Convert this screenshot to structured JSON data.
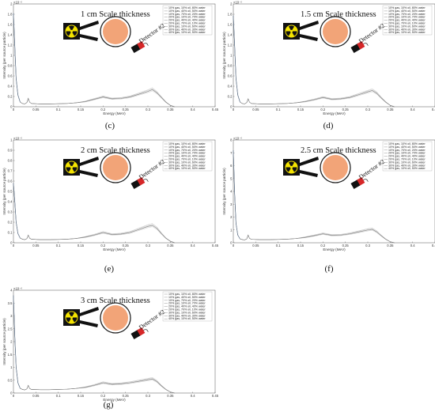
{
  "colors": {
    "axis": "#555555",
    "curve": "#7f7f7f",
    "curve_peak": "#4a7fc1",
    "detector_red": "#d62728",
    "source_yellow": "#f5e400",
    "sphere_fill": "#f2a478",
    "sphere_edge": "#222222"
  },
  "icons": [
    "radiation-trefoil-icon",
    "pipe-sphere-icon",
    "detector-icon"
  ],
  "legend_entries": [
    "10% gas, 10% oil, 80% water",
    "10% gas, 40% oil, 50% water",
    "10% gas, 70% oil, 20% water",
    "20% gas, 10% oil, 70% water",
    "20% gas, 40% oil, 40% water",
    "20% gas, 70% oil, 10% water",
    "30% gas, 10% oil, 60% water",
    "30% gas, 40% oil, 30% water",
    "40% gas, 10% oil, 50% water"
  ],
  "chart_data": [
    {
      "type": "line",
      "caption": "(c)",
      "title": "1 cm Scale thickness",
      "detector_label": "Detector #2",
      "xlabel": "Energy (MeV)",
      "ylabel": "Intensity (per source particle)",
      "y_exponent": "×10⁻⁵",
      "xlim": [
        0,
        0.45
      ],
      "ylim": [
        0,
        2.2
      ],
      "xticks": [
        "0",
        "0.05",
        "0.1",
        "0.15",
        "0.2",
        "0.25",
        "0.3",
        "0.35",
        "0.4",
        "0.45"
      ],
      "yticks": [
        "0",
        "0.2",
        "0.4",
        "0.6",
        "0.8",
        "1",
        "1.2",
        "1.4",
        "1.6",
        "1.8",
        "2"
      ],
      "x": [
        0.0,
        0.003,
        0.006,
        0.01,
        0.015,
        0.02,
        0.025,
        0.03,
        0.033,
        0.036,
        0.04,
        0.06,
        0.08,
        0.1,
        0.12,
        0.14,
        0.16,
        0.18,
        0.2,
        0.22,
        0.24,
        0.26,
        0.28,
        0.3,
        0.31,
        0.32,
        0.33,
        0.34,
        0.35,
        0.36
      ],
      "series": [
        {
          "values": [
            2.0,
            1.3,
            0.6,
            0.25,
            0.1,
            0.07,
            0.06,
            0.09,
            0.18,
            0.1,
            0.07,
            0.06,
            0.06,
            0.065,
            0.07,
            0.085,
            0.11,
            0.16,
            0.21,
            0.17,
            0.18,
            0.21,
            0.27,
            0.33,
            0.37,
            0.3,
            0.2,
            0.1,
            0.03,
            0.0
          ]
        }
      ]
    },
    {
      "type": "line",
      "caption": "(d)",
      "title": "1.5 cm Scale thickness",
      "detector_label": "Detector #2",
      "xlabel": "Energy (MeV)",
      "ylabel": "Intensity (per source particle)",
      "y_exponent": "×10⁻⁵",
      "xlim": [
        0,
        0.45
      ],
      "ylim": [
        0,
        2.2
      ],
      "xticks": [
        "0",
        "0.05",
        "0.1",
        "0.15",
        "0.2",
        "0.25",
        "0.3",
        "0.35",
        "0.4",
        "0.45"
      ],
      "yticks": [
        "0",
        "0.2",
        "0.4",
        "0.6",
        "0.8",
        "1",
        "1.2",
        "1.4",
        "1.6",
        "1.8",
        "2"
      ],
      "x": [
        0.0,
        0.003,
        0.006,
        0.01,
        0.015,
        0.02,
        0.025,
        0.03,
        0.033,
        0.036,
        0.04,
        0.06,
        0.08,
        0.1,
        0.12,
        0.14,
        0.16,
        0.18,
        0.2,
        0.22,
        0.24,
        0.26,
        0.28,
        0.3,
        0.31,
        0.32,
        0.33,
        0.34,
        0.35,
        0.36
      ],
      "series": [
        {
          "values": [
            1.95,
            1.3,
            0.6,
            0.25,
            0.1,
            0.07,
            0.06,
            0.09,
            0.17,
            0.1,
            0.07,
            0.06,
            0.06,
            0.065,
            0.07,
            0.085,
            0.11,
            0.15,
            0.2,
            0.16,
            0.17,
            0.2,
            0.26,
            0.32,
            0.35,
            0.29,
            0.19,
            0.1,
            0.03,
            0.0
          ]
        }
      ]
    },
    {
      "type": "line",
      "caption": "(e)",
      "title": "2 cm Scale thickness",
      "detector_label": "Detector #2",
      "xlabel": "Energy (MeV)",
      "ylabel": "Intensity (per source particle)",
      "y_exponent": "×10⁻⁵",
      "xlim": [
        0,
        0.45
      ],
      "ylim": [
        0,
        1.0
      ],
      "xticks": [
        "0",
        "0.05",
        "0.1",
        "0.15",
        "0.2",
        "0.25",
        "0.3",
        "0.35",
        "0.4",
        "0.45"
      ],
      "yticks": [
        "0",
        "0.1",
        "0.2",
        "0.3",
        "0.4",
        "0.5",
        "0.6",
        "0.7",
        "0.8",
        "0.9",
        "1"
      ],
      "x": [
        0.0,
        0.003,
        0.006,
        0.01,
        0.015,
        0.02,
        0.025,
        0.03,
        0.033,
        0.036,
        0.04,
        0.06,
        0.08,
        0.1,
        0.12,
        0.14,
        0.16,
        0.18,
        0.2,
        0.22,
        0.24,
        0.26,
        0.28,
        0.3,
        0.31,
        0.32,
        0.33,
        0.34,
        0.35,
        0.36
      ],
      "series": [
        {
          "values": [
            0.58,
            0.4,
            0.2,
            0.09,
            0.045,
            0.035,
            0.03,
            0.04,
            0.075,
            0.045,
            0.035,
            0.03,
            0.03,
            0.032,
            0.035,
            0.042,
            0.055,
            0.075,
            0.1,
            0.08,
            0.085,
            0.1,
            0.13,
            0.16,
            0.17,
            0.14,
            0.09,
            0.045,
            0.015,
            0.0
          ]
        }
      ]
    },
    {
      "type": "line",
      "caption": "(f)",
      "title": "2.5 cm Scale thickness",
      "detector_label": "Detector #2",
      "xlabel": "Energy (MeV)",
      "ylabel": "Intensity (per source particle)",
      "y_exponent": "×10⁻⁶",
      "xlim": [
        0,
        0.45
      ],
      "ylim": [
        0,
        8
      ],
      "xticks": [
        "0",
        "0.05",
        "0.1",
        "0.15",
        "0.2",
        "0.25",
        "0.3",
        "0.35",
        "0.4",
        "0.45"
      ],
      "yticks": [
        "0",
        "1",
        "2",
        "3",
        "4",
        "5",
        "6",
        "7",
        "8"
      ],
      "x": [
        0.0,
        0.003,
        0.006,
        0.01,
        0.015,
        0.02,
        0.025,
        0.03,
        0.033,
        0.036,
        0.04,
        0.06,
        0.08,
        0.1,
        0.12,
        0.14,
        0.16,
        0.18,
        0.2,
        0.22,
        0.24,
        0.26,
        0.28,
        0.3,
        0.31,
        0.32,
        0.33,
        0.34,
        0.35,
        0.36
      ],
      "series": [
        {
          "values": [
            7.2,
            3.8,
            1.5,
            0.6,
            0.3,
            0.25,
            0.22,
            0.3,
            0.6,
            0.35,
            0.27,
            0.24,
            0.24,
            0.26,
            0.28,
            0.33,
            0.42,
            0.55,
            0.7,
            0.58,
            0.6,
            0.7,
            0.85,
            1.0,
            1.05,
            0.85,
            0.55,
            0.28,
            0.08,
            0.0
          ]
        }
      ]
    },
    {
      "type": "line",
      "caption": "(g)",
      "title": "3 cm Scale thickness",
      "detector_label": "Detector #2",
      "xlabel": "Energy (MeV)",
      "ylabel": "Intensity (per source particle)",
      "y_exponent": "×10⁻⁶",
      "xlim": [
        0,
        0.45
      ],
      "ylim": [
        0,
        4
      ],
      "xticks": [
        "0",
        "0.05",
        "0.1",
        "0.15",
        "0.2",
        "0.25",
        "0.3",
        "0.35",
        "0.4",
        "0.45"
      ],
      "yticks": [
        "0",
        "0.5",
        "1",
        "1.5",
        "2",
        "2.5",
        "3",
        "3.5",
        "4"
      ],
      "x": [
        0.0,
        0.003,
        0.006,
        0.01,
        0.015,
        0.02,
        0.025,
        0.03,
        0.033,
        0.036,
        0.04,
        0.06,
        0.08,
        0.1,
        0.12,
        0.14,
        0.16,
        0.18,
        0.2,
        0.22,
        0.24,
        0.26,
        0.28,
        0.3,
        0.31,
        0.32,
        0.33,
        0.34,
        0.35,
        0.36
      ],
      "series": [
        {
          "values": [
            3.8,
            2.2,
            1.0,
            0.4,
            0.18,
            0.14,
            0.12,
            0.16,
            0.3,
            0.18,
            0.14,
            0.13,
            0.13,
            0.14,
            0.15,
            0.18,
            0.22,
            0.3,
            0.4,
            0.34,
            0.36,
            0.4,
            0.46,
            0.52,
            0.55,
            0.45,
            0.28,
            0.14,
            0.04,
            0.0
          ]
        }
      ]
    }
  ]
}
